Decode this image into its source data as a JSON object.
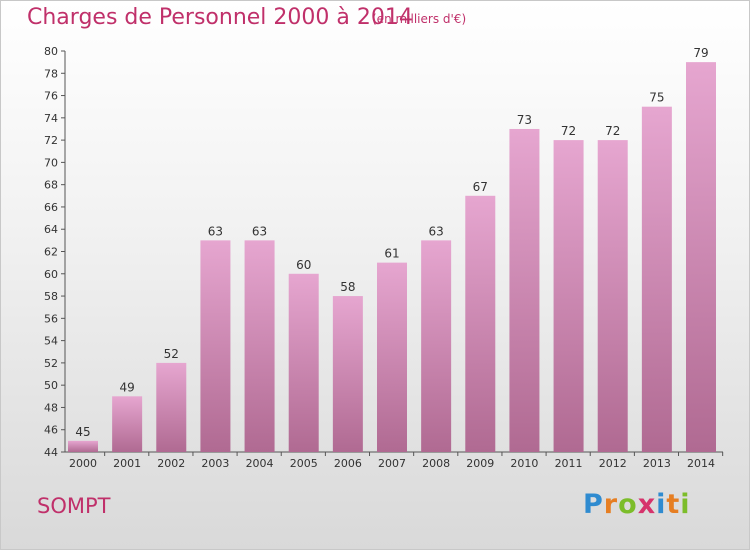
{
  "chart_data": {
    "type": "bar",
    "title": "Charges de Personnel 2000 à 2014",
    "subtitle": "(en milliers d'€)",
    "categories": [
      "2000",
      "2001",
      "2002",
      "2003",
      "2004",
      "2005",
      "2006",
      "2007",
      "2008",
      "2009",
      "2010",
      "2011",
      "2012",
      "2013",
      "2014"
    ],
    "values": [
      45,
      49,
      52,
      63,
      63,
      60,
      58,
      61,
      63,
      67,
      73,
      72,
      72,
      75,
      79
    ],
    "ylim": [
      44,
      80
    ],
    "ytick_step": 2,
    "xlabel": "",
    "ylabel": "",
    "grid": false,
    "bar_color_top": "#e6a6d0",
    "bar_color_bottom": "#b06a92"
  },
  "footer": {
    "town": "SOMPT",
    "logo_letters": [
      "P",
      "r",
      "o",
      "x",
      "i",
      "t",
      "i"
    ],
    "logo_colors": [
      "#2f8bd0",
      "#e67e22",
      "#7cbd2a",
      "#d6336c",
      "#2f8bd0",
      "#e67e22",
      "#7cbd2a"
    ]
  }
}
